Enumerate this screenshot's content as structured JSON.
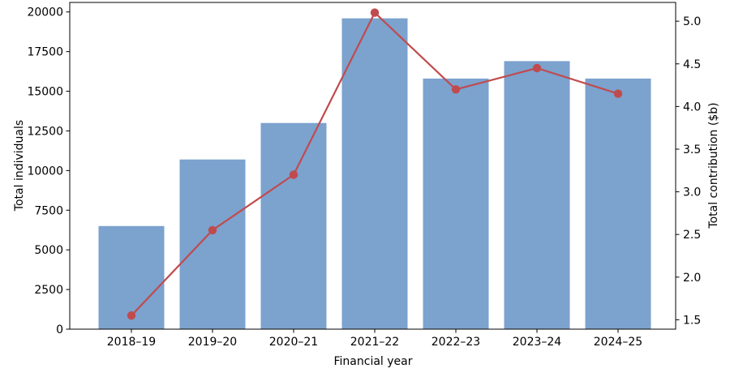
{
  "chart_data": {
    "type": "bar",
    "subtype": "bar+line-dual-axis",
    "categories": [
      "2018–19",
      "2019–20",
      "2020–21",
      "2021–22",
      "2022–23",
      "2023–24",
      "2024–25"
    ],
    "series": [
      {
        "name": "Total individuals",
        "type": "bar",
        "axis": "left",
        "color": "#7CA2CE",
        "values": [
          6500,
          10700,
          13000,
          19600,
          15800,
          16900,
          15800
        ]
      },
      {
        "name": "Total contribution ($b)",
        "type": "line",
        "axis": "right",
        "color": "#C04B4E",
        "marker": "circle",
        "values": [
          1.55,
          2.55,
          3.2,
          5.1,
          4.2,
          4.45,
          4.15
        ]
      }
    ],
    "title": "",
    "xlabel": "Financial year",
    "ylabel_left": "Total individuals",
    "ylabel_right": "Total contribution ($b)",
    "left_axis": {
      "ticks": [
        0,
        2500,
        5000,
        7500,
        10000,
        12500,
        15000,
        17500,
        20000
      ],
      "lim": [
        0,
        20600
      ]
    },
    "right_axis": {
      "ticks": [
        1.5,
        2.0,
        2.5,
        3.0,
        3.5,
        4.0,
        4.5,
        5.0
      ],
      "lim": [
        1.39,
        5.22
      ],
      "decimals": 1
    },
    "grid": false,
    "legend": "none",
    "frame_color": "#000000",
    "background": "#ffffff"
  }
}
